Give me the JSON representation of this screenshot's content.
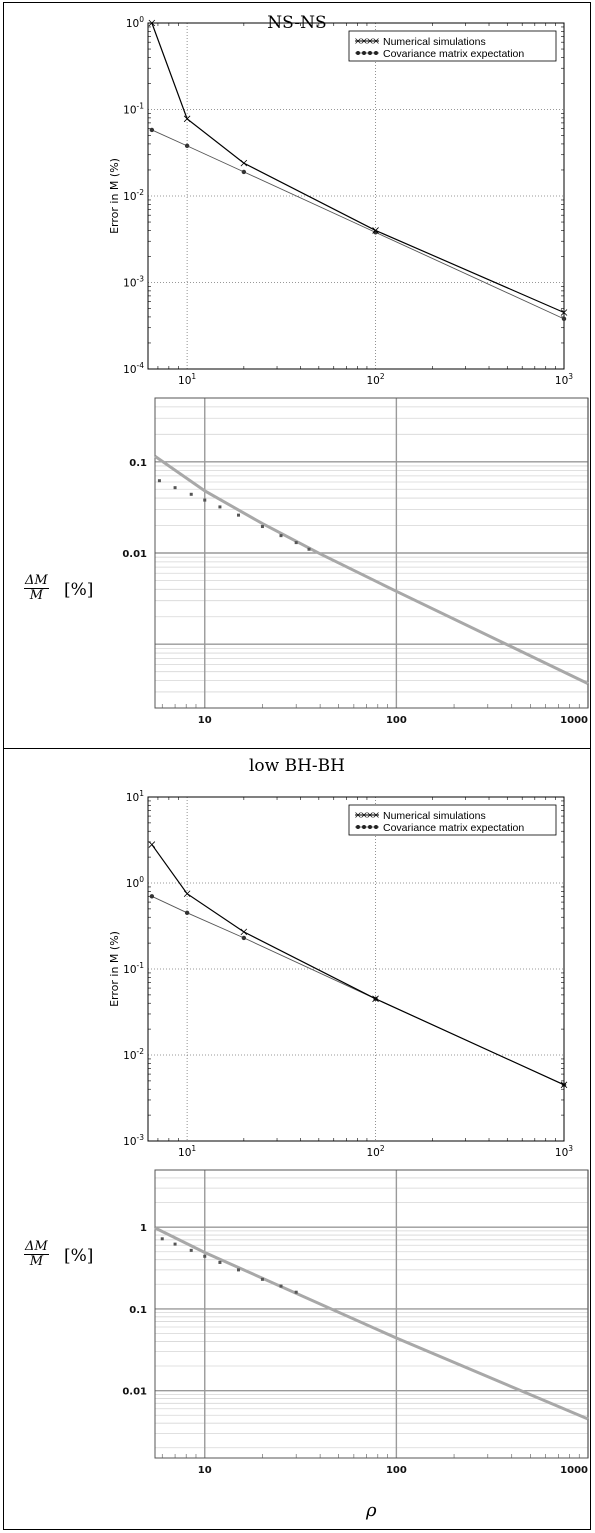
{
  "panels": [
    {
      "title": "NS-NS"
    },
    {
      "title": "low BH-BH",
      "xlabel": "ρ"
    }
  ],
  "bottom_ylabel": {
    "num": "ΔM",
    "den": "M",
    "unit": "[%]"
  },
  "colors": {
    "sim": "#000000",
    "cov": "#555555",
    "smooth": "#a8a8a8",
    "smooth_dots": "#555555"
  },
  "chart_data": [
    {
      "type": "line",
      "panel": "NS-NS",
      "xscale": "log",
      "yscale": "log",
      "xlim": [
        6.2,
        1000
      ],
      "ylim": [
        0.0001,
        1
      ],
      "xticks": [
        10,
        100,
        1000
      ],
      "xtick_labels": [
        "10^1",
        "10^2",
        "10^3"
      ],
      "yticks": [
        0.0001,
        0.001,
        0.01,
        0.1,
        1
      ],
      "ytick_labels": [
        "10^-4",
        "10^-3",
        "10^-2",
        "10^-1",
        "10^0"
      ],
      "ylabel": "Error in M (%)",
      "legend": "top-right",
      "series": [
        {
          "name": "Numerical simulations",
          "x": [
            6.5,
            10,
            20,
            100,
            1000
          ],
          "y": [
            1.0,
            0.078,
            0.024,
            0.004,
            0.00045
          ]
        },
        {
          "name": "Covariance matrix expectation",
          "x": [
            6.5,
            10,
            20,
            100,
            1000
          ],
          "y": [
            0.058,
            0.038,
            0.019,
            0.0038,
            0.00038
          ]
        }
      ]
    },
    {
      "type": "line",
      "panel": "NS-NS",
      "xscale": "log",
      "yscale": "log",
      "xlim": [
        5.5,
        1000
      ],
      "ylim": [
        0.0002,
        0.5
      ],
      "xticks": [
        10,
        100,
        1000
      ],
      "xtick_labels": [
        "10",
        "100",
        "1000"
      ],
      "yticks": [
        0.01,
        0.1
      ],
      "ytick_labels": [
        "0.01",
        "0.1"
      ],
      "ylabel": "ΔM/M [%]",
      "series": [
        {
          "style": "solid",
          "x": [
            5.5,
            10,
            20,
            40,
            100,
            1000
          ],
          "y": [
            0.115,
            0.048,
            0.021,
            0.0098,
            0.0038,
            0.00037
          ]
        },
        {
          "style": "dots",
          "x": [
            5.8,
            7,
            8.5,
            10,
            12,
            15,
            20,
            25,
            30,
            35
          ],
          "y": [
            0.062,
            0.052,
            0.044,
            0.038,
            0.032,
            0.026,
            0.0195,
            0.0155,
            0.013,
            0.011
          ]
        }
      ]
    },
    {
      "type": "line",
      "panel": "low BH-BH",
      "xscale": "log",
      "yscale": "log",
      "xlim": [
        6.2,
        1000
      ],
      "ylim": [
        0.001,
        10
      ],
      "xticks": [
        10,
        100,
        1000
      ],
      "xtick_labels": [
        "10^1",
        "10^2",
        "10^3"
      ],
      "yticks": [
        0.001,
        0.01,
        0.1,
        1,
        10
      ],
      "ytick_labels": [
        "10^-3",
        "10^-2",
        "10^-1",
        "10^0",
        "10^1"
      ],
      "ylabel": "Error in M (%)",
      "legend": "top-right",
      "series": [
        {
          "name": "Numerical simulations",
          "x": [
            6.5,
            10,
            20,
            100,
            1000
          ],
          "y": [
            2.8,
            0.75,
            0.27,
            0.045,
            0.0045
          ]
        },
        {
          "name": "Covariance matrix expectation",
          "x": [
            6.5,
            10,
            20,
            100,
            1000
          ],
          "y": [
            0.7,
            0.45,
            0.23,
            0.045,
            0.0045
          ]
        }
      ]
    },
    {
      "type": "line",
      "panel": "low BH-BH",
      "xscale": "log",
      "yscale": "log",
      "xlim": [
        5.5,
        1000
      ],
      "ylim": [
        0.0015,
        5
      ],
      "xticks": [
        10,
        100,
        1000
      ],
      "xtick_labels": [
        "10",
        "100",
        "1000"
      ],
      "yticks": [
        0.01,
        0.1,
        1
      ],
      "ytick_labels": [
        "0.01",
        "0.1",
        "1"
      ],
      "ylabel": "ΔM/M [%]",
      "series": [
        {
          "style": "solid",
          "x": [
            5.5,
            10,
            100,
            1000
          ],
          "y": [
            0.98,
            0.49,
            0.044,
            0.0045
          ]
        },
        {
          "style": "dots",
          "x": [
            6,
            7,
            8.5,
            10,
            12,
            15,
            20,
            25,
            30
          ],
          "y": [
            0.72,
            0.62,
            0.52,
            0.44,
            0.37,
            0.3,
            0.23,
            0.19,
            0.16
          ]
        }
      ]
    }
  ]
}
